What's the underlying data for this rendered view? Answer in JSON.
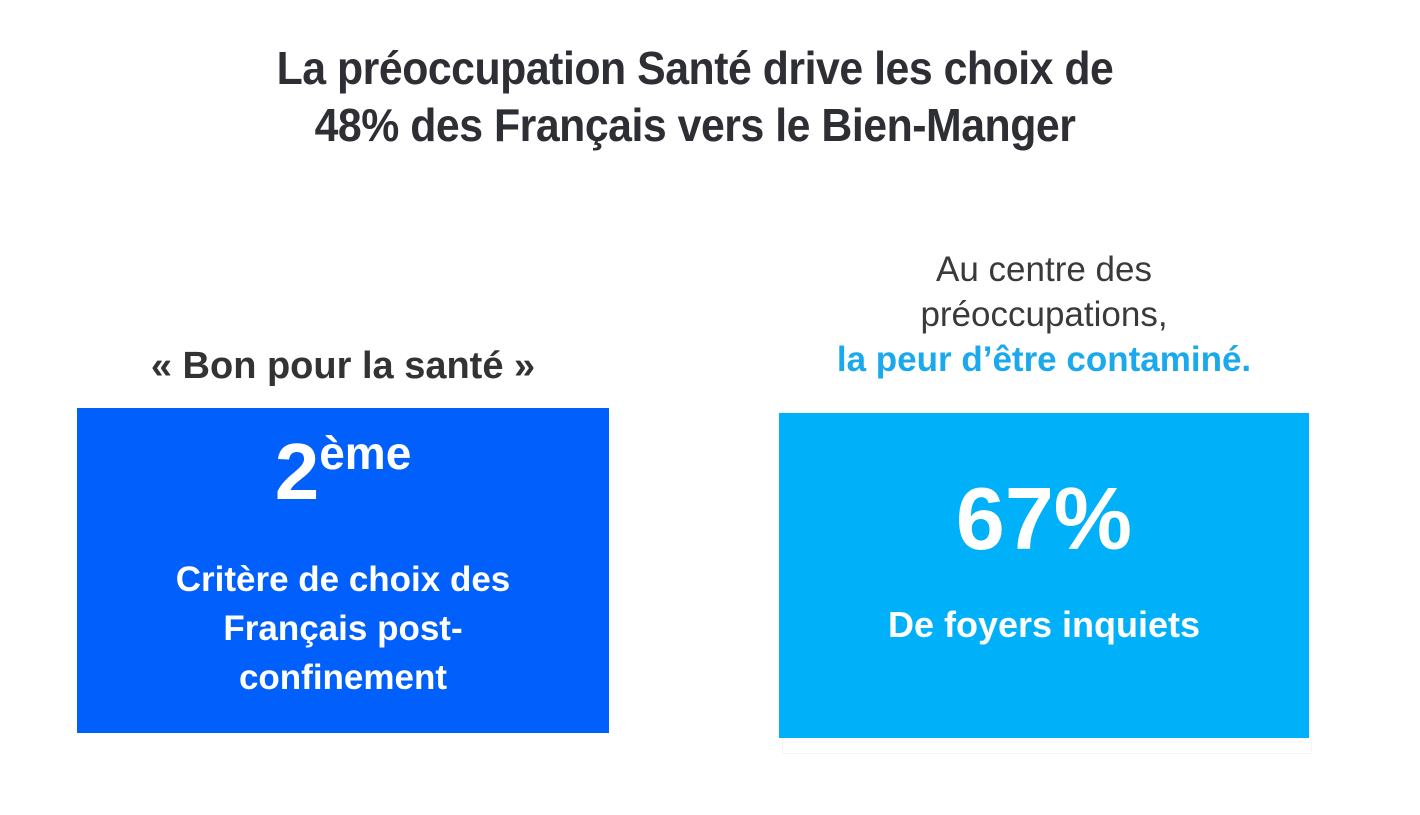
{
  "slide": {
    "title": {
      "line1": "La préoccupation Santé drive les choix de",
      "line2": "48% des Français vers le Bien-Manger",
      "color": "#2e2e35"
    },
    "left_panel": {
      "heading": "« Bon pour la santé »",
      "card": {
        "rank_number": "2",
        "rank_suffix": "ème",
        "description_lines": [
          "Critère de choix des",
          "Français post-",
          "confinement"
        ],
        "background_color": "#0160fb",
        "text_color": "#ffffff"
      }
    },
    "right_panel": {
      "intro_lines": [
        "Au centre des",
        "préoccupations,"
      ],
      "highlight_line": "la peur d’être contaminé.",
      "highlight_color": "#1ba9ed",
      "card": {
        "stat_value": "67%",
        "stat_label": "De foyers inquiets",
        "background_color": "#00b1fa",
        "text_color": "#ffffff"
      }
    },
    "colors": {
      "body_text": "#3a3a3a",
      "background": "#ffffff"
    }
  }
}
